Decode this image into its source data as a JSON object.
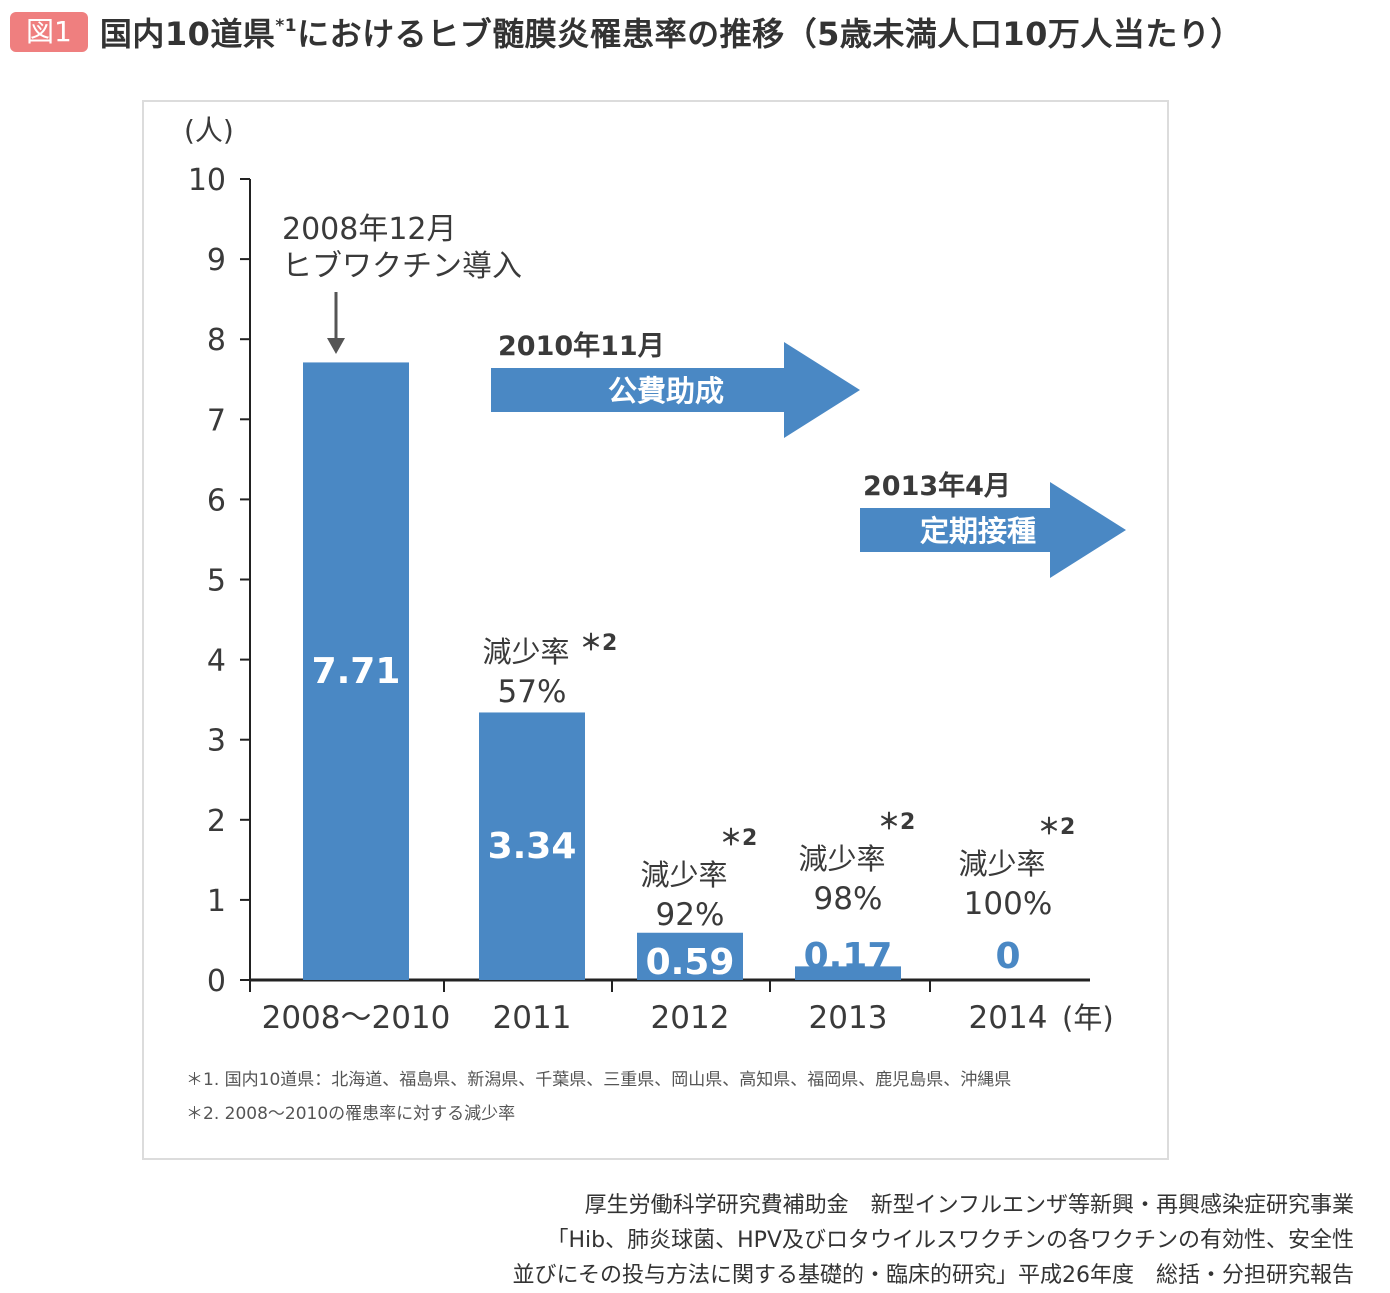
{
  "figure": {
    "badge": "図1",
    "title": "国内10道県",
    "title_sup": "*1",
    "title_rest": "におけるヒブ髄膜炎罹患率の推移（5歳未満人口10万人当たり）"
  },
  "chart_data": {
    "type": "bar",
    "ylabel": "(人)",
    "xunit": "(年)",
    "ylim": [
      0,
      10
    ],
    "yticks": [
      0,
      1,
      2,
      3,
      4,
      5,
      6,
      7,
      8,
      9,
      10
    ],
    "categories": [
      "2008～2010",
      "2011",
      "2012",
      "2013",
      "2014"
    ],
    "values": [
      7.71,
      3.34,
      0.59,
      0.17,
      0
    ],
    "value_labels": [
      "7.71",
      "3.34",
      "0.59",
      "0.17",
      "0"
    ],
    "reduction_label": "減少率",
    "reduction_note": "＊2",
    "reductions": [
      null,
      "57%",
      "92%",
      "98%",
      "100%"
    ],
    "bar_color": "#4a88c4",
    "events": [
      {
        "line1": "2008年12月",
        "line2": "ヒブワクチン導入"
      },
      {
        "line1": "2010年11月",
        "line2": "公費助成"
      },
      {
        "line1": "2013年4月",
        "line2": "定期接種"
      }
    ],
    "footnotes": [
      "＊1. 国内10道県：北海道、福島県、新潟県、千葉県、三重県、岡山県、高知県、福岡県、鹿児島県、沖縄県",
      "＊2. 2008～2010の罹患率に対する減少率"
    ]
  },
  "source": {
    "line1": "厚生労働科学研究費補助金　新型インフルエンザ等新興・再興感染症研究事業",
    "line2": "「Hib、肺炎球菌、HPV及びロタウイルスワクチンの各ワクチンの有効性、安全性",
    "line3": "並びにその投与方法に関する基礎的・臨床的研究」平成26年度　総括・分担研究報告"
  }
}
